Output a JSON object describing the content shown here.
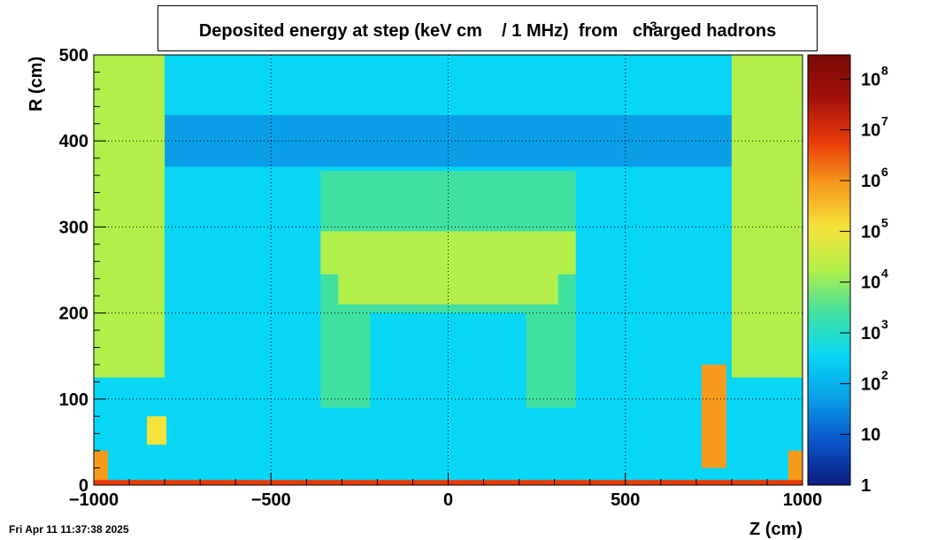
{
  "chart_data": {
    "type": "heatmap",
    "title": "Deposited energy at step (keV cm    / 1 MHz)  from   charged hadrons",
    "title_superscript": "-3",
    "xlabel": "Z (cm)",
    "ylabel": "R (cm)",
    "xlim": [
      -1000,
      1000
    ],
    "ylim": [
      0,
      500
    ],
    "x_ticks": [
      {
        "value": -1000,
        "label": "−1000"
      },
      {
        "value": -500,
        "label": "−500"
      },
      {
        "value": 0,
        "label": "0"
      },
      {
        "value": 500,
        "label": "500"
      },
      {
        "value": 1000,
        "label": "1000"
      }
    ],
    "y_ticks": [
      {
        "value": 0,
        "label": "0"
      },
      {
        "value": 100,
        "label": "100"
      },
      {
        "value": 200,
        "label": "200"
      },
      {
        "value": 300,
        "label": "300"
      },
      {
        "value": 400,
        "label": "400"
      },
      {
        "value": 500,
        "label": "500"
      }
    ],
    "grid": true,
    "colorbar": {
      "scale": "log",
      "range": [
        1,
        300000000
      ],
      "ticks": [
        {
          "value": 1,
          "base": "1",
          "exp": ""
        },
        {
          "value": 10,
          "base": "10",
          "exp": ""
        },
        {
          "value": 100,
          "base": "10",
          "exp": "2"
        },
        {
          "value": 1000,
          "base": "10",
          "exp": "3"
        },
        {
          "value": 10000,
          "base": "10",
          "exp": "4"
        },
        {
          "value": 100000,
          "base": "10",
          "exp": "5"
        },
        {
          "value": 1000000,
          "base": "10",
          "exp": "6"
        },
        {
          "value": 10000000,
          "base": "10",
          "exp": "7"
        },
        {
          "value": 100000000,
          "base": "10",
          "exp": "8"
        }
      ],
      "colors": [
        "#0b1e7f",
        "#0a53c9",
        "#0a9ee8",
        "#07d6f5",
        "#40e0a0",
        "#b2ef4a",
        "#f5e23a",
        "#f79a1c",
        "#e83a0b",
        "#a3110a",
        "#7a0a08"
      ]
    },
    "background_levels": {
      "outer_void": 300,
      "detector_cavity": 60,
      "inner_volume": 150
    },
    "regions": [
      {
        "name": "outer-upper-band",
        "z": [
          -1000,
          1000
        ],
        "r": [
          430,
          500
        ],
        "value": 300
      },
      {
        "name": "upper-cavity",
        "z": [
          -820,
          820
        ],
        "r": [
          370,
          430
        ],
        "value": 40
      },
      {
        "name": "endcap-muon-left",
        "z": [
          -1000,
          -800
        ],
        "r": [
          125,
          500
        ],
        "value": 12000
      },
      {
        "name": "endcap-muon-right",
        "z": [
          800,
          1000
        ],
        "r": [
          125,
          500
        ],
        "value": 12000
      },
      {
        "name": "calorimeter-outer",
        "z": [
          -360,
          360
        ],
        "r": [
          90,
          365
        ],
        "value": 3000
      },
      {
        "name": "barrel-top",
        "z": [
          -360,
          360
        ],
        "r": [
          245,
          295
        ],
        "value": 8000
      },
      {
        "name": "barrel-support",
        "z": [
          -310,
          310
        ],
        "r": [
          210,
          250
        ],
        "value": 30000
      },
      {
        "name": "tracker-volume",
        "z": [
          -220,
          220
        ],
        "r": [
          50,
          200
        ],
        "value": 400
      },
      {
        "name": "hot-spot-right",
        "z": [
          715,
          785
        ],
        "r": [
          20,
          140
        ],
        "value": 500000
      },
      {
        "name": "hot-spot-left-small",
        "z": [
          -850,
          -795
        ],
        "r": [
          47,
          80
        ],
        "value": 300000
      },
      {
        "name": "corner-left",
        "z": [
          -1000,
          -960
        ],
        "r": [
          5,
          40
        ],
        "value": 2000000
      },
      {
        "name": "corner-right",
        "z": [
          960,
          1000
        ],
        "r": [
          5,
          40
        ],
        "value": 2000000
      },
      {
        "name": "beam-line",
        "z": [
          -1000,
          1000
        ],
        "r": [
          0,
          6
        ],
        "value": 3000000
      }
    ],
    "timestamp": "Fri Apr 11 11:37:38 2025"
  }
}
